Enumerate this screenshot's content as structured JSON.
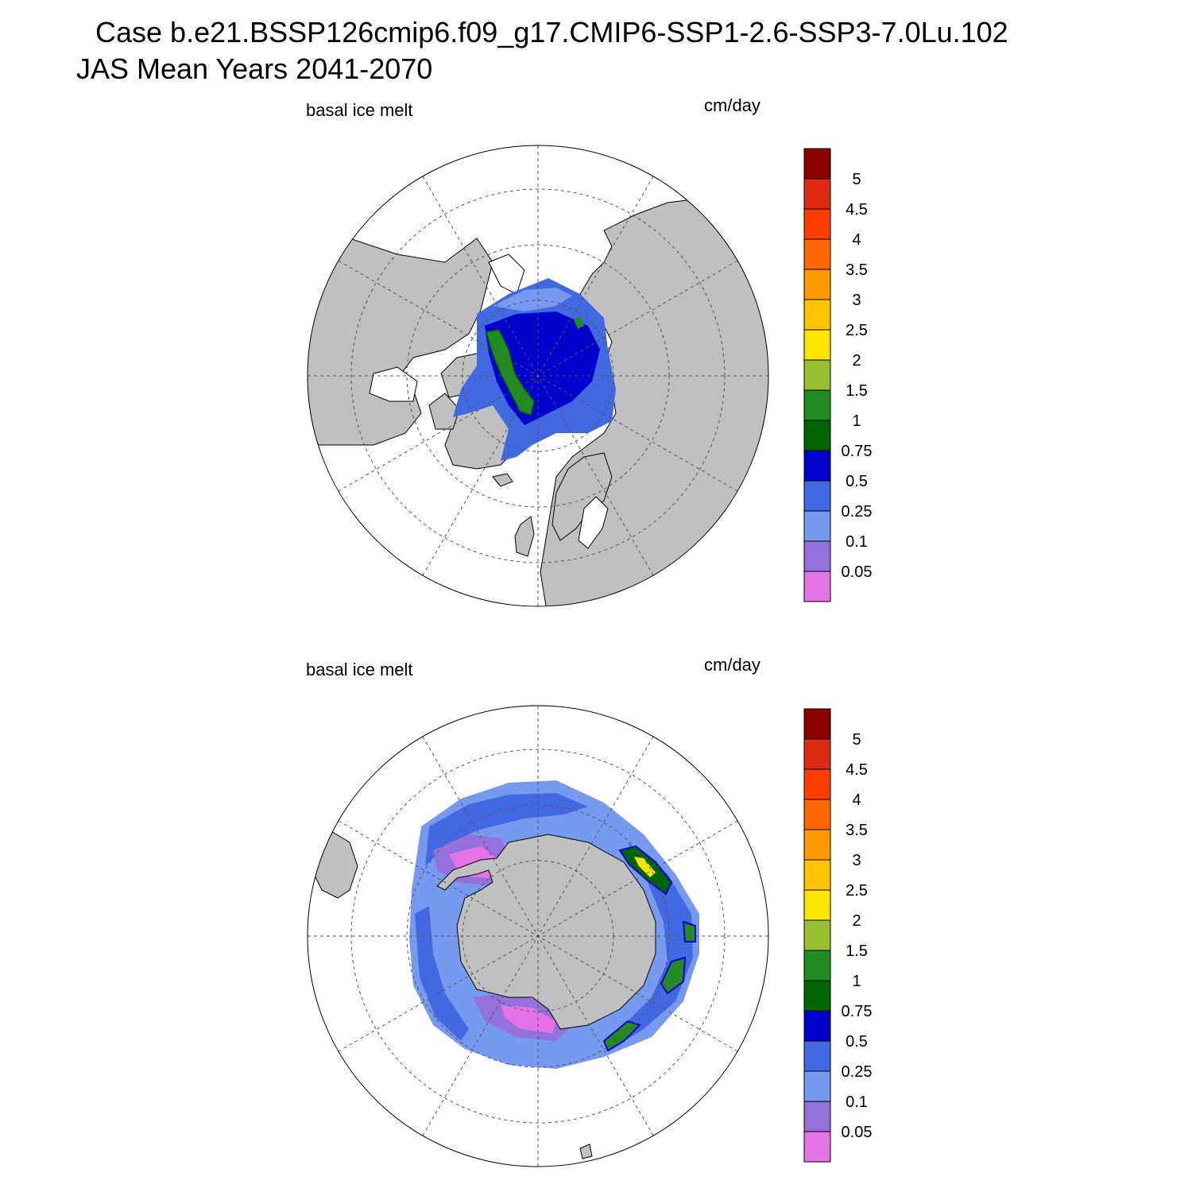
{
  "header": {
    "case_line": "Case b.e21.BSSP126cmip6.f09_g17.CMIP6-SSP1-2.6-SSP3-7.0Lu.102",
    "period_line": "JAS Mean   Years 2041-2070"
  },
  "panels": [
    {
      "id": "north",
      "left_label": "basal ice melt",
      "right_label": "cm/day",
      "hemisphere": "Northern"
    },
    {
      "id": "south",
      "left_label": "basal ice melt",
      "right_label": "cm/day",
      "hemisphere": "Southern"
    }
  ],
  "colorbar": {
    "units": "cm/day",
    "levels": [
      "5",
      "4.5",
      "4",
      "3.5",
      "3",
      "2.5",
      "2",
      "1.5",
      "1",
      "0.75",
      "0.5",
      "0.25",
      "0.1",
      "0.05"
    ],
    "colors": [
      "#8b0000",
      "#dd2a12",
      "#ff3c00",
      "#ff6600",
      "#ff9900",
      "#ffc400",
      "#ffe600",
      "#9bbf34",
      "#228b22",
      "#006400",
      "#0000cd",
      "#4169e1",
      "#7799f0",
      "#9370db",
      "#e673e6"
    ]
  },
  "colors": {
    "land": "#c0c0c0",
    "ocean": "#ffffff",
    "grid": "#555555"
  }
}
